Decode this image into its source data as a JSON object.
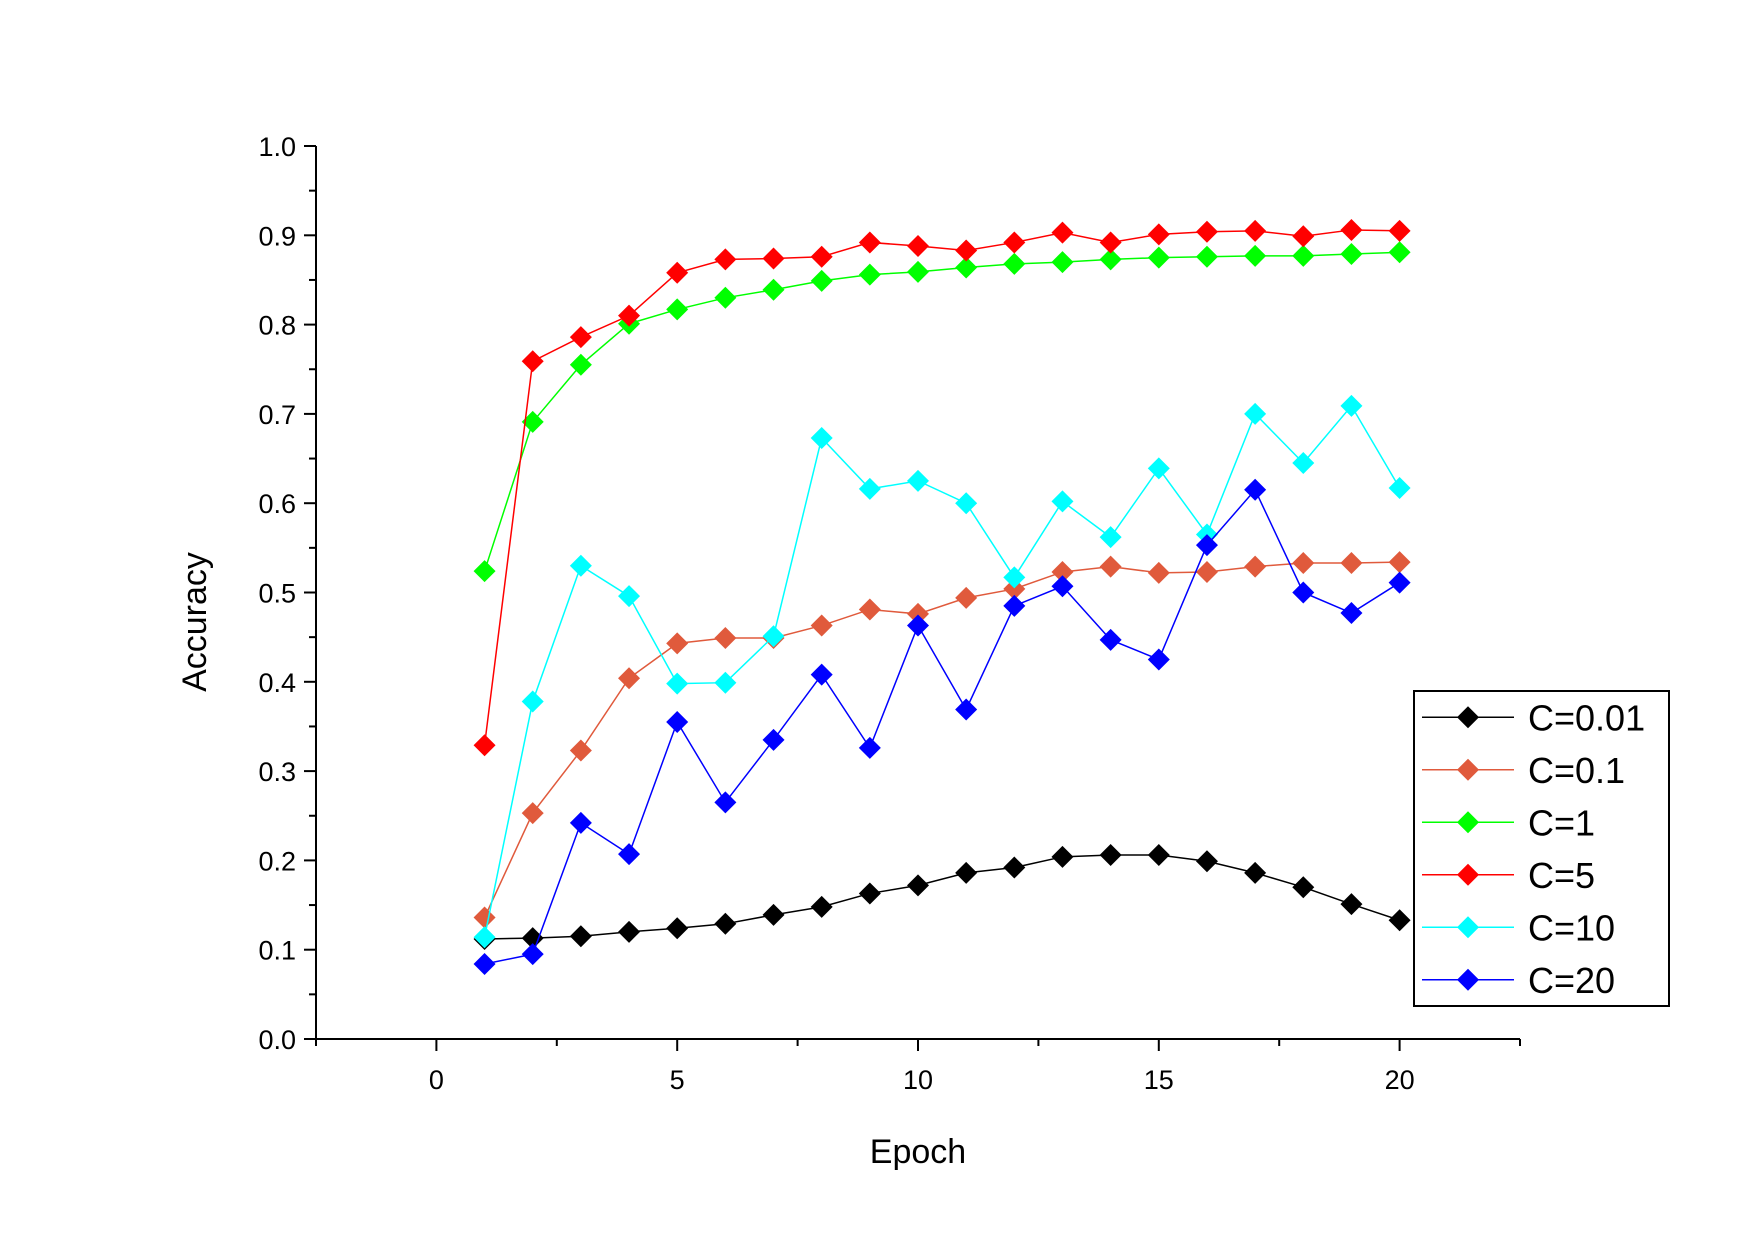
{
  "chart_data": {
    "type": "line",
    "title": "",
    "xlabel": "Epoch",
    "ylabel": "Accuracy",
    "xlim": [
      -2.5,
      22.5
    ],
    "ylim": [
      0.0,
      1.0
    ],
    "x_ticks": [
      0,
      5,
      10,
      15,
      20
    ],
    "x_tick_labels": [
      "0",
      "5",
      "10",
      "15",
      "20"
    ],
    "y_ticks": [
      0.0,
      0.1,
      0.2,
      0.3,
      0.4,
      0.5,
      0.6,
      0.7,
      0.8,
      0.9,
      1.0
    ],
    "y_tick_labels": [
      "0.0",
      "0.1",
      "0.2",
      "0.3",
      "0.4",
      "0.5",
      "0.6",
      "0.7",
      "0.8",
      "0.9",
      "1.0"
    ],
    "grid": false,
    "legend_position": "bottom-right",
    "marker": "diamond",
    "x": [
      1,
      2,
      3,
      4,
      5,
      6,
      7,
      8,
      9,
      10,
      11,
      12,
      13,
      14,
      15,
      16,
      17,
      18,
      19,
      20
    ],
    "series": [
      {
        "name": "C=0.01",
        "color": "#000000",
        "values": [
          0.112,
          0.113,
          0.115,
          0.12,
          0.124,
          0.129,
          0.139,
          0.148,
          0.163,
          0.172,
          0.186,
          0.192,
          0.204,
          0.206,
          0.206,
          0.199,
          0.186,
          0.17,
          0.151,
          0.133
        ]
      },
      {
        "name": "C=0.1",
        "color": "#e05a3c",
        "values": [
          0.136,
          0.253,
          0.323,
          0.404,
          0.443,
          0.449,
          0.449,
          0.463,
          0.481,
          0.476,
          0.494,
          0.504,
          0.523,
          0.529,
          0.522,
          0.523,
          0.529,
          0.533,
          0.533,
          0.534
        ]
      },
      {
        "name": "C=1",
        "color": "#00ff00",
        "values": [
          0.524,
          0.691,
          0.755,
          0.801,
          0.817,
          0.83,
          0.839,
          0.849,
          0.856,
          0.859,
          0.864,
          0.868,
          0.87,
          0.873,
          0.875,
          0.876,
          0.877,
          0.877,
          0.879,
          0.881
        ]
      },
      {
        "name": "C=5",
        "color": "#ff0000",
        "values": [
          0.329,
          0.759,
          0.786,
          0.81,
          0.858,
          0.873,
          0.874,
          0.876,
          0.892,
          0.888,
          0.883,
          0.892,
          0.903,
          0.892,
          0.901,
          0.904,
          0.905,
          0.899,
          0.906,
          0.905
        ]
      },
      {
        "name": "C=10",
        "color": "#00ffff",
        "values": [
          0.114,
          0.378,
          0.53,
          0.496,
          0.398,
          0.399,
          0.451,
          0.673,
          0.616,
          0.625,
          0.6,
          0.517,
          0.602,
          0.562,
          0.639,
          0.565,
          0.7,
          0.645,
          0.709,
          0.617
        ]
      },
      {
        "name": "C=20",
        "color": "#0000ff",
        "values": [
          0.084,
          0.095,
          0.242,
          0.207,
          0.355,
          0.265,
          0.335,
          0.408,
          0.326,
          0.463,
          0.369,
          0.485,
          0.507,
          0.447,
          0.425,
          0.553,
          0.615,
          0.5,
          0.477,
          0.511
        ]
      }
    ]
  }
}
